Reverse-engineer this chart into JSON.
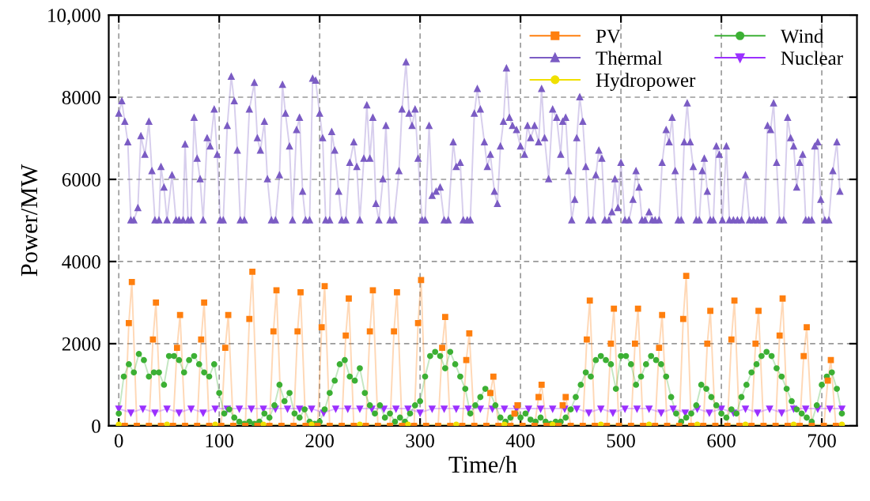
{
  "chart_data": {
    "type": "line",
    "xlabel": "Time/h",
    "ylabel": "Power/MW",
    "xlim": [
      -10,
      735
    ],
    "xticks": [
      0,
      100,
      200,
      300,
      400,
      500,
      600,
      700
    ],
    "ylim": [
      0,
      10000
    ],
    "yticks": [
      0,
      2000,
      4000,
      6000,
      8000,
      {
        "value": 10000,
        "label": "10,000"
      }
    ],
    "grid": true,
    "legend": "top right",
    "line_style": "solid",
    "series": [
      {
        "name": "PV",
        "color": "#ff7f0e",
        "marker": "square",
        "x": [
          6,
          10,
          13,
          18,
          30,
          34,
          37,
          42,
          54,
          58,
          61,
          66,
          78,
          82,
          85,
          90,
          102,
          106,
          109,
          114,
          126,
          130,
          133,
          138,
          150,
          154,
          157,
          162,
          174,
          178,
          181,
          186,
          198,
          202,
          205,
          210,
          222,
          226,
          229,
          234,
          246,
          250,
          253,
          258,
          270,
          274,
          277,
          282,
          294,
          298,
          301,
          306,
          318,
          322,
          325,
          330,
          342,
          346,
          349,
          354,
          366,
          370,
          373,
          378,
          390,
          394,
          397,
          402,
          414,
          418,
          421,
          426,
          438,
          442,
          445,
          450,
          462,
          466,
          469,
          474,
          486,
          490,
          493,
          498,
          510,
          514,
          517,
          522,
          534,
          538,
          541,
          546,
          558,
          562,
          565,
          570,
          582,
          586,
          589,
          594,
          606,
          610,
          613,
          618,
          630,
          634,
          637,
          642,
          654,
          658,
          661,
          666,
          678,
          682,
          685,
          690,
          702,
          706,
          709,
          714
        ],
        "values": [
          0,
          2500,
          3500,
          0,
          0,
          2100,
          3000,
          0,
          0,
          1900,
          2700,
          0,
          0,
          2100,
          3000,
          0,
          0,
          1900,
          2700,
          0,
          0,
          2600,
          3750,
          0,
          0,
          2300,
          3300,
          0,
          0,
          2300,
          3250,
          0,
          0,
          2400,
          3400,
          0,
          0,
          2200,
          3100,
          0,
          0,
          2300,
          3300,
          0,
          0,
          2300,
          3250,
          0,
          0,
          2500,
          3550,
          0,
          0,
          1900,
          2650,
          0,
          0,
          1600,
          2250,
          0,
          0,
          800,
          1200,
          0,
          0,
          300,
          500,
          0,
          0,
          700,
          1000,
          0,
          0,
          500,
          700,
          0,
          0,
          2100,
          3050,
          0,
          0,
          2000,
          2850,
          0,
          0,
          2000,
          2850,
          0,
          0,
          1900,
          2700,
          0,
          0,
          2600,
          3650,
          0,
          0,
          2000,
          2800,
          0,
          0,
          2100,
          3050,
          0,
          0,
          2000,
          2800,
          0,
          0,
          2200,
          3100,
          0,
          0,
          1700,
          2400,
          0,
          0,
          1100,
          1600,
          0
        ]
      },
      {
        "name": "Thermal",
        "color": "#7b5cc4",
        "marker": "triangle",
        "x": [
          0,
          3,
          6,
          9,
          12,
          15,
          19,
          22,
          26,
          30,
          33,
          36,
          40,
          42,
          45,
          48,
          53,
          57,
          60,
          64,
          66,
          69,
          72,
          75,
          78,
          81,
          84,
          88,
          91,
          95,
          98,
          101,
          104,
          108,
          112,
          115,
          118,
          121,
          125,
          130,
          135,
          138,
          141,
          145,
          148,
          152,
          156,
          160,
          163,
          166,
          170,
          173,
          177,
          180,
          183,
          186,
          190,
          193,
          196,
          200,
          203,
          206,
          210,
          212,
          215,
          219,
          222,
          226,
          230,
          234,
          237,
          240,
          244,
          247,
          250,
          253,
          256,
          259,
          263,
          266,
          270,
          274,
          279,
          282,
          286,
          289,
          292,
          295,
          298,
          302,
          305,
          309,
          312,
          316,
          320,
          324,
          328,
          333,
          336,
          340,
          343,
          347,
          350,
          354,
          357,
          360,
          364,
          367,
          370,
          374,
          377,
          380,
          383,
          386,
          389,
          392,
          396,
          400,
          404,
          407,
          410,
          414,
          418,
          421,
          424,
          428,
          432,
          436,
          440,
          442,
          445,
          448,
          451,
          454,
          456,
          459,
          462,
          465,
          468,
          472,
          475,
          478,
          481,
          484,
          488,
          491,
          494,
          497,
          500,
          504,
          508,
          512,
          515,
          518,
          521,
          524,
          528,
          531,
          534,
          538,
          541,
          545,
          548,
          551,
          554,
          557,
          560,
          563,
          566,
          569,
          572,
          575,
          578,
          581,
          583,
          586,
          589,
          592,
          595,
          598,
          601,
          605,
          608,
          612,
          616,
          620,
          624,
          628,
          632,
          636,
          640,
          643,
          646,
          649,
          652,
          655,
          658,
          662,
          666,
          669,
          672,
          675,
          678,
          681,
          684,
          687,
          690,
          693,
          696,
          699,
          703,
          707,
          711,
          715,
          718
        ],
        "values": [
          7600,
          7900,
          7400,
          6900,
          5000,
          5000,
          5300,
          7050,
          6600,
          7400,
          6200,
          5000,
          5000,
          6300,
          5800,
          5000,
          6100,
          5000,
          5000,
          5000,
          6850,
          5000,
          5000,
          7500,
          6500,
          6000,
          5000,
          7000,
          6800,
          7700,
          6600,
          5000,
          5000,
          7300,
          8500,
          7900,
          6700,
          5000,
          5000,
          7700,
          8350,
          7000,
          6700,
          7400,
          6000,
          5000,
          5000,
          6100,
          8300,
          7600,
          6800,
          5000,
          7200,
          7500,
          5700,
          5000,
          5000,
          8450,
          8400,
          7600,
          7000,
          5000,
          5000,
          7150,
          6700,
          5700,
          5000,
          5000,
          6400,
          6900,
          6300,
          5000,
          6500,
          7800,
          6500,
          7500,
          5400,
          5000,
          6000,
          7300,
          5000,
          5000,
          6200,
          7700,
          8850,
          7600,
          7300,
          7700,
          6500,
          5000,
          5000,
          7300,
          5600,
          5700,
          5800,
          5000,
          5000,
          6900,
          6300,
          6400,
          5000,
          5000,
          5000,
          7600,
          8200,
          7700,
          6900,
          6300,
          6600,
          5700,
          5400,
          6800,
          7400,
          8700,
          7500,
          7300,
          7200,
          6800,
          6600,
          7300,
          7000,
          7300,
          6900,
          8200,
          7000,
          6000,
          7700,
          7500,
          6600,
          7400,
          7500,
          6200,
          5000,
          5500,
          7000,
          8000,
          7400,
          6300,
          5000,
          5000,
          6100,
          6700,
          6500,
          5000,
          5000,
          5200,
          6000,
          5300,
          6400,
          5000,
          5000,
          5500,
          6200,
          5800,
          5000,
          5000,
          5200,
          5000,
          5000,
          5000,
          6400,
          7200,
          6900,
          7500,
          6200,
          5000,
          5000,
          6900,
          7850,
          6900,
          6300,
          5000,
          5000,
          6200,
          6500,
          5700,
          5000,
          5000,
          6800,
          6600,
          5000,
          6800,
          5000,
          5000,
          5000,
          5000,
          6100,
          5000,
          5000,
          5000,
          5000,
          5000,
          7300,
          7200,
          7850,
          6400,
          5000,
          5000,
          7500,
          7000,
          6800,
          5800,
          6400,
          6600,
          5000,
          5000,
          5000,
          6800,
          6900,
          5500,
          5000,
          5000,
          6200,
          6900,
          5700
        ]
      },
      {
        "name": "Hydropower",
        "color": "#f0e000",
        "marker": "circle",
        "x": [
          0,
          48,
          96,
          144,
          192,
          240,
          288,
          336,
          384,
          432,
          480,
          528,
          576,
          624,
          672,
          720
        ],
        "values": [
          30,
          30,
          30,
          30,
          30,
          30,
          30,
          30,
          30,
          30,
          30,
          30,
          30,
          30,
          30,
          30
        ]
      },
      {
        "name": "Wind",
        "color": "#3cb034",
        "marker": "circle",
        "x": [
          0,
          5,
          10,
          15,
          20,
          25,
          30,
          35,
          40,
          45,
          50,
          55,
          60,
          65,
          70,
          75,
          80,
          85,
          90,
          95,
          100,
          105,
          110,
          115,
          120,
          125,
          130,
          135,
          140,
          145,
          150,
          155,
          160,
          165,
          170,
          175,
          180,
          185,
          190,
          195,
          200,
          205,
          210,
          215,
          220,
          225,
          230,
          235,
          240,
          245,
          250,
          255,
          260,
          265,
          270,
          275,
          280,
          285,
          290,
          295,
          300,
          305,
          310,
          315,
          320,
          325,
          330,
          335,
          340,
          345,
          350,
          355,
          360,
          365,
          370,
          375,
          380,
          385,
          390,
          395,
          400,
          405,
          410,
          415,
          420,
          425,
          430,
          435,
          440,
          445,
          450,
          455,
          460,
          465,
          470,
          475,
          480,
          485,
          490,
          495,
          500,
          505,
          510,
          515,
          520,
          525,
          530,
          535,
          540,
          545,
          550,
          555,
          560,
          565,
          570,
          575,
          580,
          585,
          590,
          595,
          600,
          605,
          610,
          615,
          620,
          625,
          630,
          635,
          640,
          645,
          650,
          655,
          660,
          665,
          670,
          675,
          680,
          685,
          690,
          695,
          700,
          705,
          710,
          715,
          720
        ],
        "values": [
          300,
          1200,
          1500,
          1300,
          1750,
          1600,
          1200,
          1300,
          1300,
          1000,
          1700,
          1700,
          1600,
          1300,
          1600,
          1700,
          1500,
          1300,
          1200,
          1500,
          800,
          300,
          400,
          200,
          100,
          50,
          100,
          50,
          100,
          300,
          200,
          500,
          1000,
          600,
          800,
          300,
          200,
          400,
          100,
          50,
          100,
          400,
          800,
          1100,
          1500,
          1600,
          1200,
          1100,
          1400,
          800,
          500,
          300,
          500,
          200,
          300,
          100,
          200,
          100,
          300,
          500,
          600,
          1200,
          1700,
          1800,
          1700,
          1400,
          1800,
          1500,
          1200,
          900,
          300,
          500,
          700,
          900,
          800,
          500,
          200,
          100,
          200,
          300,
          200,
          300,
          150,
          100,
          200,
          100,
          50,
          100,
          100,
          200,
          400,
          700,
          1000,
          1300,
          1200,
          1600,
          1700,
          1600,
          1500,
          900,
          1700,
          1700,
          1500,
          1000,
          1200,
          1500,
          1700,
          1600,
          1500,
          1200,
          700,
          300,
          100,
          200,
          300,
          500,
          1000,
          900,
          700,
          500,
          300,
          200,
          400,
          300,
          700,
          1000,
          1300,
          1500,
          1700,
          1800,
          1700,
          1400,
          1200,
          900,
          600,
          400,
          300,
          200,
          100,
          500,
          1000,
          1200,
          1300,
          900,
          300
        ]
      },
      {
        "name": "Nuclear",
        "color": "#9b30ff",
        "marker": "triangle_down",
        "x": [
          0,
          12,
          24,
          36,
          48,
          60,
          72,
          84,
          96,
          108,
          120,
          132,
          144,
          156,
          168,
          180,
          192,
          204,
          216,
          228,
          240,
          252,
          264,
          276,
          288,
          300,
          312,
          324,
          336,
          348,
          360,
          372,
          384,
          396,
          408,
          420,
          432,
          444,
          456,
          468,
          480,
          492,
          504,
          516,
          528,
          540,
          552,
          564,
          576,
          588,
          600,
          612,
          624,
          636,
          648,
          660,
          672,
          684,
          696,
          708,
          720
        ],
        "values": [
          420,
          320,
          420,
          320,
          420,
          320,
          420,
          320,
          420,
          420,
          420,
          420,
          420,
          420,
          420,
          420,
          420,
          320,
          420,
          420,
          420,
          420,
          420,
          420,
          420,
          320,
          420,
          420,
          420,
          420,
          420,
          420,
          420,
          420,
          420,
          420,
          420,
          420,
          420,
          320,
          420,
          320,
          420,
          420,
          420,
          320,
          420,
          320,
          420,
          320,
          420,
          320,
          420,
          320,
          420,
          320,
          420,
          420,
          420,
          420,
          420
        ]
      }
    ]
  }
}
